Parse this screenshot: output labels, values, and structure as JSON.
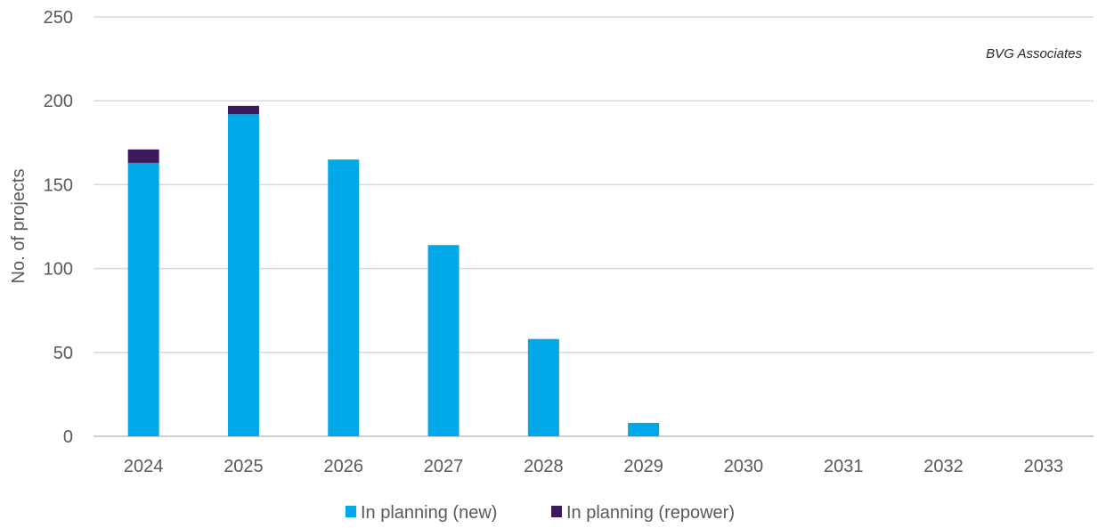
{
  "chart_data": {
    "type": "bar",
    "stacked": true,
    "categories": [
      "2024",
      "2025",
      "2026",
      "2027",
      "2028",
      "2029",
      "2030",
      "2031",
      "2032",
      "2033"
    ],
    "series": [
      {
        "name": "In planning (new)",
        "color": "#00a8e8",
        "values": [
          163,
          192,
          165,
          114,
          58,
          8,
          0,
          0,
          0,
          0
        ]
      },
      {
        "name": "In planning (repower)",
        "color": "#3d1a5b",
        "values": [
          8,
          5,
          0,
          0,
          0,
          0,
          0,
          0,
          0,
          0
        ]
      }
    ],
    "ylabel": "No. of projects",
    "xlabel": "",
    "ylim": [
      0,
      250
    ],
    "yticks": [
      0,
      50,
      100,
      150,
      200,
      250
    ],
    "grid": true,
    "legend_position": "bottom",
    "annotation": "BVG Associates"
  }
}
